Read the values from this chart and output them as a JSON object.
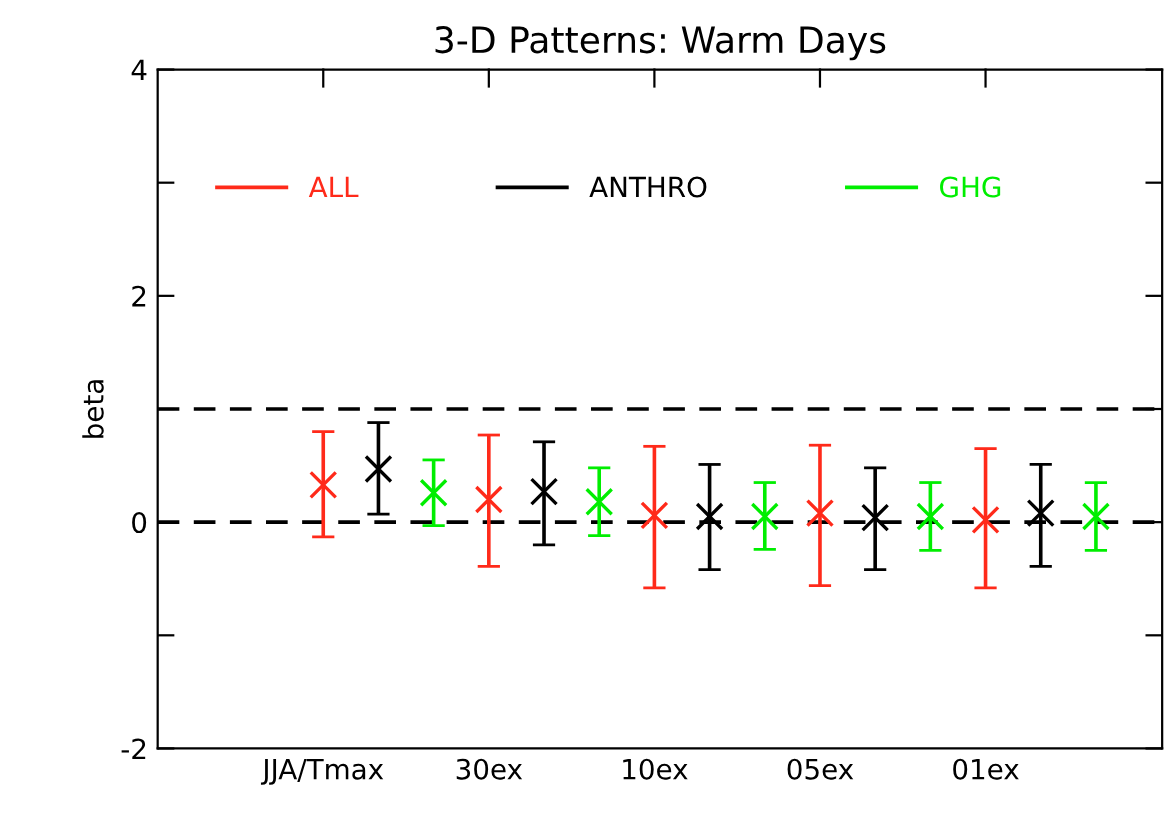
{
  "chart_data": {
    "type": "scatter",
    "title": "3-D Patterns: Warm Days",
    "ylabel": "beta",
    "categories": [
      "JJA/Tmax",
      null,
      null,
      "30ex",
      null,
      null,
      "10ex",
      null,
      null,
      "05ex",
      null,
      null,
      "01ex",
      null,
      null
    ],
    "series": [
      {
        "name": "ALL",
        "color": "#ff2a1a",
        "values": [
          0.33,
          null,
          null,
          0.2,
          null,
          null,
          0.06,
          null,
          null,
          0.08,
          null,
          null,
          0.02,
          null,
          null
        ],
        "errors": [
          [
            -0.13,
            0.8
          ],
          null,
          null,
          [
            -0.39,
            0.77
          ],
          null,
          null,
          [
            -0.58,
            0.67
          ],
          null,
          null,
          [
            -0.56,
            0.68
          ],
          null,
          null,
          [
            -0.58,
            0.65
          ],
          null,
          null
        ]
      },
      {
        "name": "ANTHRO",
        "color": "#000000",
        "values": [
          null,
          0.47,
          null,
          null,
          0.27,
          null,
          null,
          0.05,
          null,
          null,
          0.04,
          null,
          null,
          0.08,
          null
        ],
        "errors": [
          null,
          [
            0.07,
            0.88
          ],
          null,
          null,
          [
            -0.2,
            0.71
          ],
          null,
          null,
          [
            -0.42,
            0.51
          ],
          null,
          null,
          [
            -0.42,
            0.48
          ],
          null,
          null,
          [
            -0.39,
            0.51
          ],
          null
        ]
      },
      {
        "name": "GHG",
        "color": "#00ee00",
        "values": [
          null,
          null,
          0.26,
          null,
          null,
          0.18,
          null,
          null,
          0.05,
          null,
          null,
          0.05,
          null,
          null,
          0.05
        ],
        "errors": [
          null,
          null,
          [
            -0.03,
            0.55
          ],
          null,
          null,
          [
            -0.12,
            0.48
          ],
          null,
          null,
          [
            -0.24,
            0.35
          ],
          null,
          null,
          [
            -0.25,
            0.35
          ],
          null,
          null,
          [
            -0.25,
            0.35
          ]
        ]
      }
    ],
    "ylim": [
      -2,
      4
    ],
    "yticks": [
      -2,
      {
        "value": -1,
        "label": null
      },
      0,
      {
        "value": 1,
        "label": null
      },
      2,
      {
        "value": 3,
        "label": null
      },
      4
    ],
    "ref_lines": [
      {
        "axis": "y",
        "value": 0,
        "line_style": "dashed",
        "color": "#000000"
      },
      {
        "axis": "y",
        "value": 1,
        "line_style": "dashed",
        "color": "#000000"
      }
    ],
    "marker": "cross",
    "legend": "top",
    "grid": false
  }
}
